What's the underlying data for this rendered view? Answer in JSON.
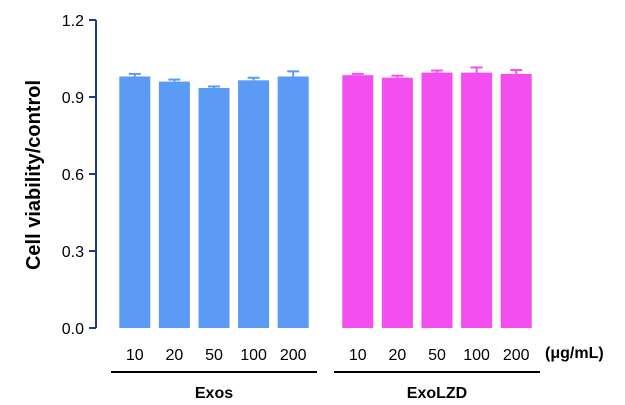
{
  "chart_data": {
    "type": "bar",
    "ylabel": "Cell viability/control",
    "unit_label": "(μg/mL)",
    "ylim": [
      0,
      1.2
    ],
    "yticks": [
      "0.0",
      "0.3",
      "0.6",
      "0.9",
      "1.2"
    ],
    "groups": [
      {
        "name": "Exos",
        "color": "#5b9bf5",
        "categories": [
          "10",
          "20",
          "50",
          "100",
          "200"
        ],
        "values": [
          0.98,
          0.96,
          0.935,
          0.965,
          0.98
        ],
        "errors": [
          0.01,
          0.008,
          0.006,
          0.01,
          0.02
        ]
      },
      {
        "name": "ExoLZD",
        "color": "#f54ef0",
        "categories": [
          "10",
          "20",
          "50",
          "100",
          "200"
        ],
        "values": [
          0.985,
          0.975,
          0.995,
          0.995,
          0.99
        ],
        "errors": [
          0.005,
          0.008,
          0.008,
          0.02,
          0.015
        ]
      }
    ]
  }
}
